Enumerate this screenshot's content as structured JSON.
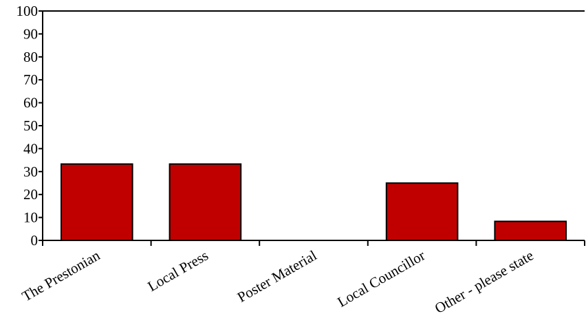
{
  "chart_data": {
    "type": "bar",
    "categories": [
      "The Prestonian",
      "Local Press",
      "Poster Material",
      "Local Councillor",
      "Other - please state"
    ],
    "values": [
      33.3,
      33.3,
      0,
      25,
      8.3
    ],
    "ylim": [
      0,
      100
    ],
    "yticks": [
      "0",
      "10",
      "20",
      "30",
      "40",
      "50",
      "60",
      "70",
      "80",
      "90",
      "100"
    ],
    "grid": false,
    "legend": "none",
    "bar_color": "#C00000",
    "bar_edge_color": "#000000"
  }
}
